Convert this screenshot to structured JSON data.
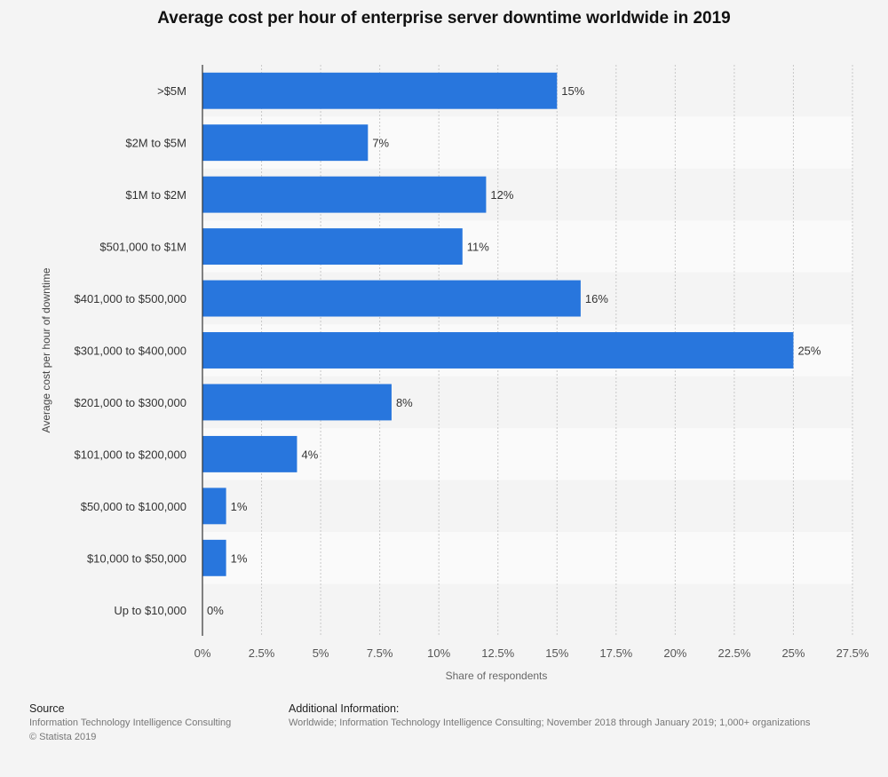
{
  "chart_data": {
    "type": "bar",
    "orientation": "horizontal",
    "title": "Average cost per hour of enterprise server downtime worldwide in 2019",
    "xlabel": "Share of respondents",
    "ylabel": "Average cost per hour of downtime",
    "categories": [
      ">$5M",
      "$2M to $5M",
      "$1M to $2M",
      "$501,000 to $1M",
      "$401,000 to $500,000",
      "$301,000 to $400,000",
      "$201,000 to $300,000",
      "$101,000 to $200,000",
      "$50,000 to $100,000",
      "$10,000 to $50,000",
      "Up to $10,000"
    ],
    "values": [
      15,
      7,
      12,
      11,
      16,
      25,
      8,
      4,
      1,
      1,
      0
    ],
    "value_labels": [
      "15%",
      "7%",
      "12%",
      "11%",
      "16%",
      "25%",
      "8%",
      "4%",
      "1%",
      "1%",
      "0%"
    ],
    "xlim": [
      0,
      27.5
    ],
    "xticks": [
      0,
      2.5,
      5,
      7.5,
      10,
      12.5,
      15,
      17.5,
      20,
      22.5,
      25,
      27.5
    ],
    "xtick_labels": [
      "0%",
      "2.5%",
      "5%",
      "7.5%",
      "10%",
      "12.5%",
      "15%",
      "17.5%",
      "20%",
      "22.5%",
      "25%",
      "27.5%"
    ],
    "grid": true,
    "bar_color": "#2876dd"
  },
  "footer": {
    "source_heading": "Source",
    "source_line1": "Information Technology Intelligence Consulting",
    "source_line2": "© Statista 2019",
    "info_heading": "Additional Information:",
    "info_text": "Worldwide; Information Technology Intelligence Consulting; November 2018 through January 2019; 1,000+ organizations"
  }
}
